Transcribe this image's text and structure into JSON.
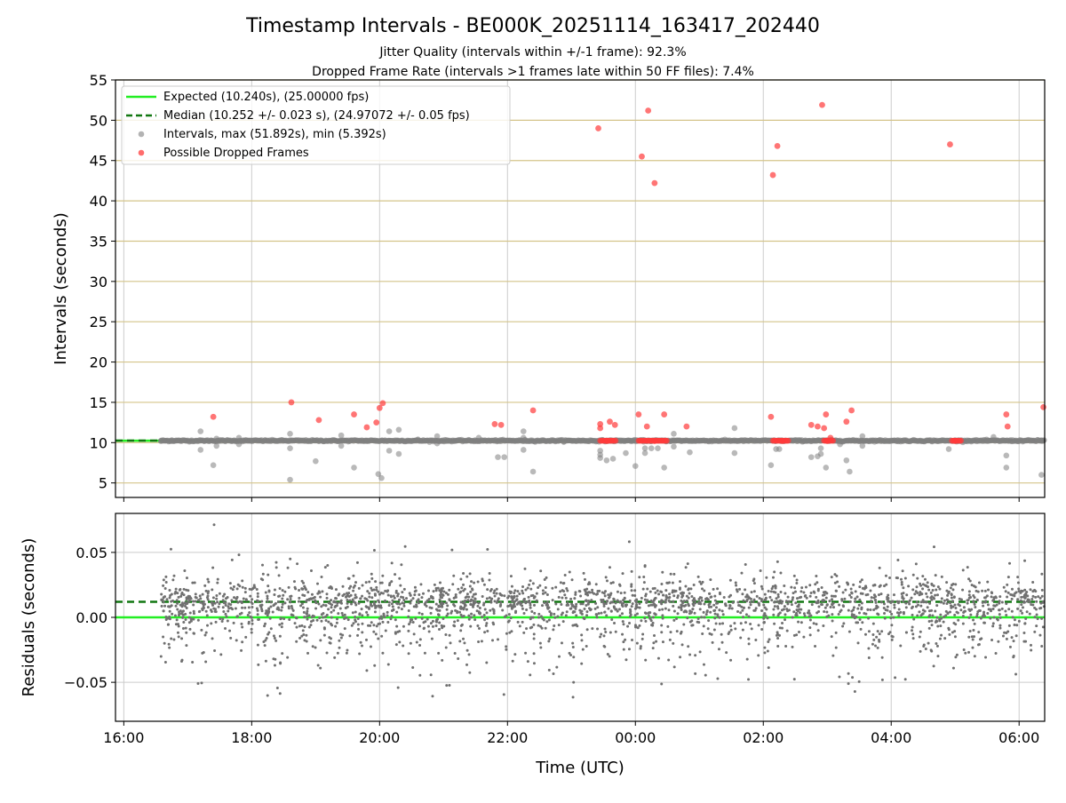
{
  "figure": {
    "title": "Timestamp Intervals - BE000K_20251114_163417_202440",
    "subtitle1": "Jitter Quality (intervals within +/-1 frame): 92.3%",
    "subtitle2": "Dropped Frame Rate (intervals >1 frames late within 50 FF files): 7.4%"
  },
  "chart_data": [
    {
      "type": "scatter",
      "ylabel": "Intervals (seconds)",
      "xlim_hours": [
        15.87,
        30.4
      ],
      "ylim": [
        3.2,
        55
      ],
      "yticks": [
        5,
        10,
        15,
        20,
        25,
        30,
        35,
        40,
        45,
        50,
        55
      ],
      "xticks": [
        16,
        18,
        20,
        22,
        24,
        26,
        28,
        30
      ],
      "xtick_labels": [
        "16:00",
        "18:00",
        "20:00",
        "22:00",
        "00:00",
        "02:00",
        "04:00",
        "06:00"
      ],
      "grid_y_color": "#d4c48a",
      "legend_position": "upper left",
      "legend": [
        "Expected (10.240s), (25.00000 fps)",
        "Median (10.252 +/- 0.023 s), (24.97072 +/- 0.05 fps)",
        "Intervals, max (51.892s), min (5.392s)",
        "Possible Dropped Frames"
      ],
      "series": [
        {
          "name": "Expected (10.240s), (25.00000 fps)",
          "kind": "hline",
          "y": 10.24,
          "color": "#22ee22",
          "style": "solid"
        },
        {
          "name": "Median (10.252 +/- 0.023 s), (24.97072 +/- 0.05 fps)",
          "kind": "hline",
          "y": 10.252,
          "color": "#117711",
          "style": "dashed"
        },
        {
          "name": "Intervals, max (51.892s), min (5.392s)",
          "kind": "scatter",
          "color": "#808080",
          "points": [
            [
              16.58,
              10.2
            ],
            [
              16.75,
              10.3
            ],
            [
              17.2,
              11.4
            ],
            [
              17.2,
              9.1
            ],
            [
              17.4,
              7.2
            ],
            [
              17.45,
              10.5
            ],
            [
              17.45,
              9.6
            ],
            [
              17.8,
              10.6
            ],
            [
              17.8,
              9.8
            ],
            [
              18.6,
              11.1
            ],
            [
              18.6,
              9.3
            ],
            [
              18.6,
              5.4
            ],
            [
              19.0,
              7.7
            ],
            [
              19.4,
              10.9
            ],
            [
              19.4,
              9.6
            ],
            [
              19.6,
              6.9
            ],
            [
              19.8,
              10.2
            ],
            [
              19.98,
              6.1
            ],
            [
              20.03,
              5.6
            ],
            [
              20.15,
              11.4
            ],
            [
              20.15,
              9.0
            ],
            [
              20.3,
              11.6
            ],
            [
              20.3,
              8.6
            ],
            [
              20.6,
              10.4
            ],
            [
              20.9,
              10.8
            ],
            [
              20.9,
              9.9
            ],
            [
              21.55,
              10.6
            ],
            [
              21.85,
              8.2
            ],
            [
              21.95,
              8.2
            ],
            [
              22.25,
              10.6
            ],
            [
              22.25,
              11.4
            ],
            [
              22.25,
              9.1
            ],
            [
              22.4,
              6.4
            ],
            [
              23.45,
              9.0
            ],
            [
              23.45,
              8.5
            ],
            [
              23.45,
              8.1
            ],
            [
              23.55,
              7.8
            ],
            [
              23.65,
              8.0
            ],
            [
              23.85,
              8.7
            ],
            [
              24.0,
              7.1
            ],
            [
              24.15,
              9.3
            ],
            [
              24.15,
              8.7
            ],
            [
              24.25,
              9.3
            ],
            [
              24.35,
              9.3
            ],
            [
              24.45,
              6.9
            ],
            [
              24.6,
              11.1
            ],
            [
              24.6,
              9.5
            ],
            [
              24.85,
              8.8
            ],
            [
              25.55,
              11.8
            ],
            [
              25.55,
              8.7
            ],
            [
              26.12,
              7.2
            ],
            [
              26.2,
              9.2
            ],
            [
              26.25,
              9.2
            ],
            [
              26.75,
              8.2
            ],
            [
              26.85,
              8.3
            ],
            [
              26.9,
              8.6
            ],
            [
              26.9,
              9.3
            ],
            [
              26.98,
              6.9
            ],
            [
              27.2,
              9.8
            ],
            [
              27.3,
              7.8
            ],
            [
              27.35,
              6.4
            ],
            [
              27.55,
              10.8
            ],
            [
              27.55,
              9.6
            ],
            [
              28.1,
              10.3
            ],
            [
              28.9,
              9.2
            ],
            [
              29.5,
              10.2
            ],
            [
              29.6,
              10.7
            ],
            [
              29.8,
              8.4
            ],
            [
              29.8,
              6.9
            ],
            [
              30.35,
              6.0
            ],
            [
              30.35,
              10.3
            ]
          ]
        },
        {
          "name": "Possible Dropped Frames",
          "kind": "scatter",
          "color": "#ff3b3b",
          "points": [
            [
              17.4,
              13.2
            ],
            [
              18.62,
              15.0
            ],
            [
              19.05,
              12.8
            ],
            [
              19.6,
              13.5
            ],
            [
              19.8,
              11.9
            ],
            [
              19.95,
              12.5
            ],
            [
              20.0,
              14.3
            ],
            [
              20.05,
              14.9
            ],
            [
              21.8,
              12.3
            ],
            [
              21.9,
              12.2
            ],
            [
              22.4,
              14.0
            ],
            [
              23.42,
              49.0
            ],
            [
              23.45,
              12.3
            ],
            [
              23.45,
              11.8
            ],
            [
              23.6,
              12.6
            ],
            [
              23.68,
              12.2
            ],
            [
              23.55,
              10.2
            ],
            [
              24.05,
              13.5
            ],
            [
              24.1,
              45.5
            ],
            [
              24.2,
              51.2
            ],
            [
              24.3,
              42.2
            ],
            [
              24.18,
              12.0
            ],
            [
              24.45,
              13.5
            ],
            [
              24.8,
              12.0
            ],
            [
              24.3,
              10.2
            ],
            [
              26.15,
              43.2
            ],
            [
              26.22,
              46.8
            ],
            [
              26.12,
              13.2
            ],
            [
              26.3,
              10.2
            ],
            [
              26.75,
              12.2
            ],
            [
              26.85,
              12.0
            ],
            [
              26.95,
              11.8
            ],
            [
              26.92,
              51.9
            ],
            [
              26.98,
              13.5
            ],
            [
              27.05,
              10.6
            ],
            [
              27.3,
              12.6
            ],
            [
              27.38,
              14.0
            ],
            [
              27.0,
              10.2
            ],
            [
              28.92,
              47.0
            ],
            [
              29.0,
              10.2
            ],
            [
              29.8,
              13.5
            ],
            [
              29.82,
              12.0
            ],
            [
              30.38,
              14.4
            ]
          ],
          "dropped_clusters": [
            [
              23.45,
              23.7
            ],
            [
              24.05,
              24.5
            ],
            [
              26.15,
              26.4
            ],
            [
              26.95,
              27.1
            ],
            [
              28.95,
              29.1
            ]
          ]
        }
      ]
    },
    {
      "type": "scatter",
      "xlabel": "Time (UTC)",
      "ylabel": "Residuals (seconds)",
      "xlim_hours": [
        15.87,
        30.4
      ],
      "ylim": [
        -0.08,
        0.08
      ],
      "yticks": [
        -0.05,
        0.0,
        0.05
      ],
      "ytick_labels": [
        "−0.05",
        "0.00",
        "0.05"
      ],
      "xticks": [
        16,
        18,
        20,
        22,
        24,
        26,
        28,
        30
      ],
      "xtick_labels": [
        "16:00",
        "18:00",
        "20:00",
        "22:00",
        "00:00",
        "02:00",
        "04:00",
        "06:00"
      ],
      "series": [
        {
          "kind": "hline",
          "y": 0.0,
          "color": "#22ee22",
          "style": "solid"
        },
        {
          "kind": "hline",
          "y": 0.012,
          "color": "#117711",
          "style": "dashed"
        },
        {
          "kind": "scatter",
          "color": "#707070",
          "x_range_hours": [
            16.58,
            30.4
          ],
          "n_points": 2600,
          "center": 0.012,
          "spread": 0.02,
          "range": [
            -0.078,
            0.078
          ]
        }
      ]
    }
  ]
}
